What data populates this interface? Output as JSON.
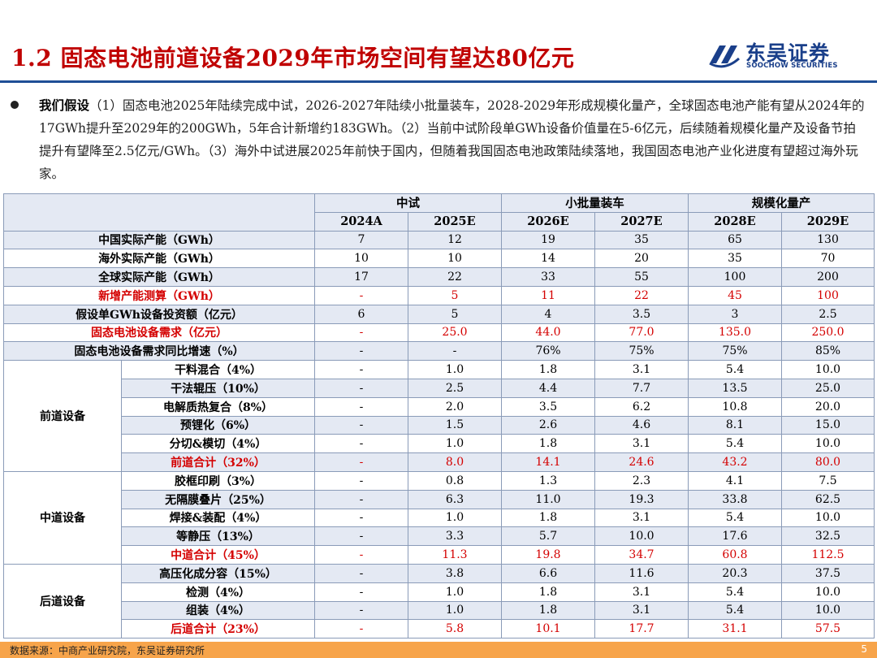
{
  "title": "1.2 固态电池前道设备2029年市场空间有望达80亿元",
  "logo": {
    "cn": "东吴证券",
    "en": "SOOCHOW SECURITIES"
  },
  "assumption": {
    "lead": "我们假设",
    "text": "（1）固态电池2025年陆续完成中试，2026-2027年陆续小批量装车，2028-2029年形成规模化量产，全球固态电池产能有望从2024年的17GWh提升至2029年的200GWh，5年合计新增约183GWh。（2）当前中试阶段单GWh设备价值量在5-6亿元，后续随着规模化量产及设备节拍提升有望降至2.5亿元/GWh。（3）海外中试进展2025年前快于国内，但随着我国固态电池政策陆续落地，我国固态电池产业化进度有望超过海外玩家。"
  },
  "table": {
    "phases": [
      "中试",
      "小批量装车",
      "规模化量产"
    ],
    "years": [
      "2024A",
      "2025E",
      "2026E",
      "2027E",
      "2028E",
      "2029E"
    ],
    "top_rows": [
      {
        "label": "中国实际产能（GWh）",
        "values": [
          "7",
          "12",
          "19",
          "35",
          "65",
          "130"
        ],
        "red": false
      },
      {
        "label": "海外实际产能（GWh）",
        "values": [
          "10",
          "10",
          "14",
          "20",
          "35",
          "70"
        ],
        "red": false
      },
      {
        "label": "全球实际产能（GWh）",
        "values": [
          "17",
          "22",
          "33",
          "55",
          "100",
          "200"
        ],
        "red": false
      },
      {
        "label": "新增产能测算（GWh）",
        "values": [
          "-",
          "5",
          "11",
          "22",
          "45",
          "100"
        ],
        "red": true
      },
      {
        "label": "假设单GWh设备投资额（亿元）",
        "values": [
          "6",
          "5",
          "4",
          "3.5",
          "3",
          "2.5"
        ],
        "red": false
      },
      {
        "label": "固态电池设备需求（亿元）",
        "values": [
          "-",
          "25.0",
          "44.0",
          "77.0",
          "135.0",
          "250.0"
        ],
        "red": true
      },
      {
        "label": "固态电池设备需求同比增速（%）",
        "values": [
          "-",
          "-",
          "76%",
          "75%",
          "75%",
          "85%"
        ],
        "red": false
      }
    ],
    "groups": [
      {
        "name": "前道设备",
        "rows": [
          {
            "label": "干料混合（4%）",
            "values": [
              "-",
              "1.0",
              "1.8",
              "3.1",
              "5.4",
              "10.0"
            ],
            "red": false
          },
          {
            "label": "干法辊压（10%）",
            "values": [
              "-",
              "2.5",
              "4.4",
              "7.7",
              "13.5",
              "25.0"
            ],
            "red": false
          },
          {
            "label": "电解质热复合（8%）",
            "values": [
              "-",
              "2.0",
              "3.5",
              "6.2",
              "10.8",
              "20.0"
            ],
            "red": false
          },
          {
            "label": "预锂化（6%）",
            "values": [
              "-",
              "1.5",
              "2.6",
              "4.6",
              "8.1",
              "15.0"
            ],
            "red": false
          },
          {
            "label": "分切&模切（4%）",
            "values": [
              "-",
              "1.0",
              "1.8",
              "3.1",
              "5.4",
              "10.0"
            ],
            "red": false
          },
          {
            "label": "前道合计（32%）",
            "values": [
              "-",
              "8.0",
              "14.1",
              "24.6",
              "43.2",
              "80.0"
            ],
            "red": true
          }
        ]
      },
      {
        "name": "中道设备",
        "rows": [
          {
            "label": "胶框印刷（3%）",
            "values": [
              "-",
              "0.8",
              "1.3",
              "2.3",
              "4.1",
              "7.5"
            ],
            "red": false
          },
          {
            "label": "无隔膜叠片（25%）",
            "values": [
              "-",
              "6.3",
              "11.0",
              "19.3",
              "33.8",
              "62.5"
            ],
            "red": false
          },
          {
            "label": "焊接&装配（4%）",
            "values": [
              "-",
              "1.0",
              "1.8",
              "3.1",
              "5.4",
              "10.0"
            ],
            "red": false
          },
          {
            "label": "等静压（13%）",
            "values": [
              "-",
              "3.3",
              "5.7",
              "10.0",
              "17.6",
              "32.5"
            ],
            "red": false
          },
          {
            "label": "中道合计（45%）",
            "values": [
              "-",
              "11.3",
              "19.8",
              "34.7",
              "60.8",
              "112.5"
            ],
            "red": true
          }
        ]
      },
      {
        "name": "后道设备",
        "rows": [
          {
            "label": "高压化成分容（15%）",
            "values": [
              "-",
              "3.8",
              "6.6",
              "11.6",
              "20.3",
              "37.5"
            ],
            "red": false
          },
          {
            "label": "检测（4%）",
            "values": [
              "-",
              "1.0",
              "1.8",
              "3.1",
              "5.4",
              "10.0"
            ],
            "red": false
          },
          {
            "label": "组装（4%）",
            "values": [
              "-",
              "1.0",
              "1.8",
              "3.1",
              "5.4",
              "10.0"
            ],
            "red": false
          },
          {
            "label": "后道合计（23%）",
            "values": [
              "-",
              "5.8",
              "10.1",
              "17.7",
              "31.1",
              "57.5"
            ],
            "red": true
          }
        ]
      }
    ]
  },
  "source": "数据来源：中商产业研究院，东吴证券研究所",
  "page_number": "5",
  "colors": {
    "title_red": "#c00000",
    "value_red": "#d40000",
    "brand_blue": "#1a3f8a",
    "rule_blue": "#1f4e96",
    "footer_orange": "#f7a44a",
    "alt_row": "#e4e9f3"
  }
}
